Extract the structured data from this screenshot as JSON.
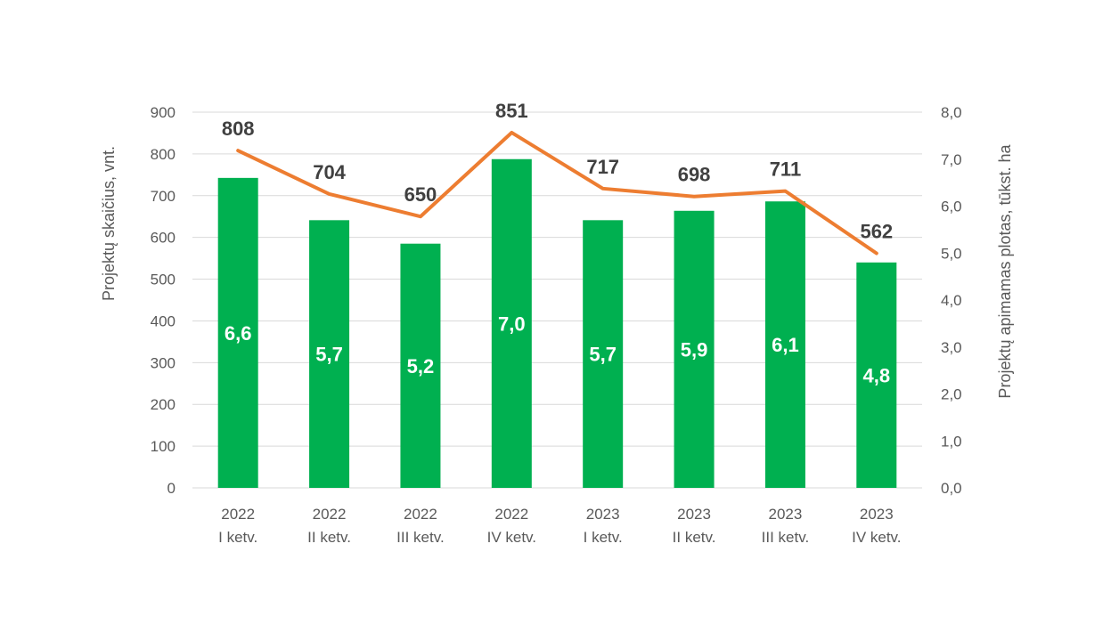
{
  "chart_data": {
    "type": "bar",
    "categories": [
      [
        "2022",
        "I ketv."
      ],
      [
        "2022",
        "II ketv."
      ],
      [
        "2022",
        "III ketv."
      ],
      [
        "2022",
        "IV ketv."
      ],
      [
        "2023",
        "I ketv."
      ],
      [
        "2023",
        "II ketv."
      ],
      [
        "2023",
        "III ketv."
      ],
      [
        "2023",
        "IV ketv."
      ]
    ],
    "bars": {
      "axis": "right",
      "values": [
        6.6,
        5.7,
        5.2,
        7.0,
        5.7,
        5.9,
        6.1,
        4.8
      ],
      "labels": [
        "6,6",
        "5,7",
        "5,2",
        "7,0",
        "5,7",
        "5,9",
        "6,1",
        "4,8"
      ],
      "color": "#00b050"
    },
    "line": {
      "axis": "left",
      "type": "line",
      "values": [
        808,
        704,
        650,
        851,
        717,
        698,
        711,
        562
      ],
      "labels": [
        "808",
        "704",
        "650",
        "851",
        "717",
        "698",
        "711",
        "562"
      ],
      "color": "#ed7d31"
    },
    "y_left": {
      "label": "Projektų skaičius, vnt.",
      "min": 0,
      "max": 900,
      "ticks": [
        "0",
        "100",
        "200",
        "300",
        "400",
        "500",
        "600",
        "700",
        "800",
        "900"
      ]
    },
    "y_right": {
      "label": "Projektų apimamas plotas, tūkst. ha",
      "min": 0,
      "max": 8,
      "ticks": [
        "0,0",
        "1,0",
        "2,0",
        "3,0",
        "4,0",
        "5,0",
        "6,0",
        "7,0",
        "8,0"
      ]
    },
    "grid": true,
    "gridColor": "#d9d9d9"
  }
}
